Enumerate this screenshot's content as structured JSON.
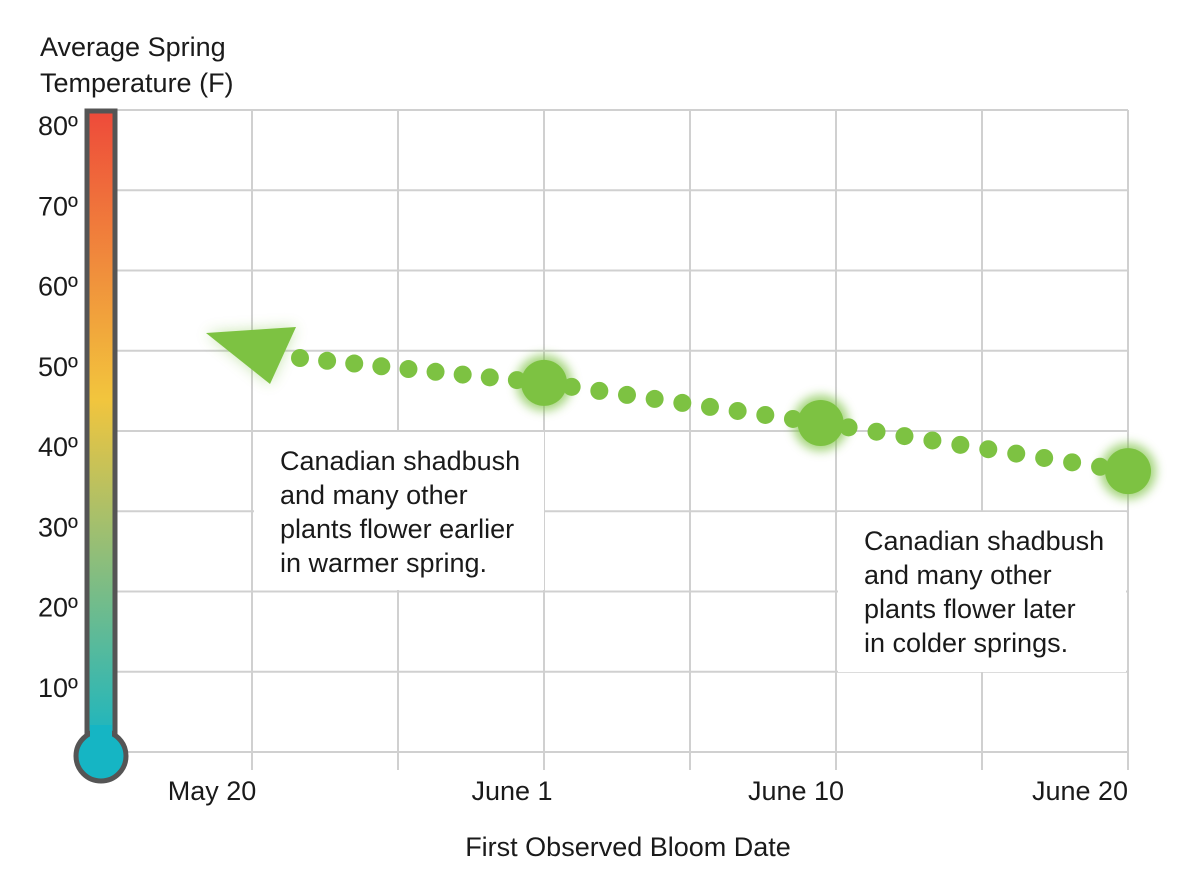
{
  "chart_data": {
    "type": "line",
    "ylabel": [
      "Average Spring",
      "Temperature (F)"
    ],
    "xlabel": "First Observed Bloom Date",
    "x_ticks": [
      "May 20",
      "June 1",
      "June 10",
      "June 20"
    ],
    "y_ticks": [
      "10º",
      "20º",
      "30º",
      "40º",
      "50º",
      "60º",
      "70º",
      "80º"
    ],
    "ylim": [
      0,
      80
    ],
    "grid": true,
    "series": [
      {
        "x": [
          "June 1",
          "June 10",
          "June 20"
        ],
        "y": [
          46,
          41,
          35
        ]
      }
    ],
    "arrow_direction": "earlier and warmer (toward May 20, about 50º)",
    "annotations": [
      [
        "Canadian shadbush",
        "and many other",
        "plants flower earlier",
        "in warmer spring."
      ],
      [
        "Canadian shadbush",
        "and many other",
        "plants flower later",
        "in colder springs."
      ]
    ],
    "colors": {
      "series": "#7dc242",
      "grid": "#d0d0d0",
      "thermometer_top": "#ee4a3a",
      "thermometer_mid": "#f2c53d",
      "thermometer_bottom": "#15b5c4",
      "thermometer_outline": "#555555"
    }
  }
}
